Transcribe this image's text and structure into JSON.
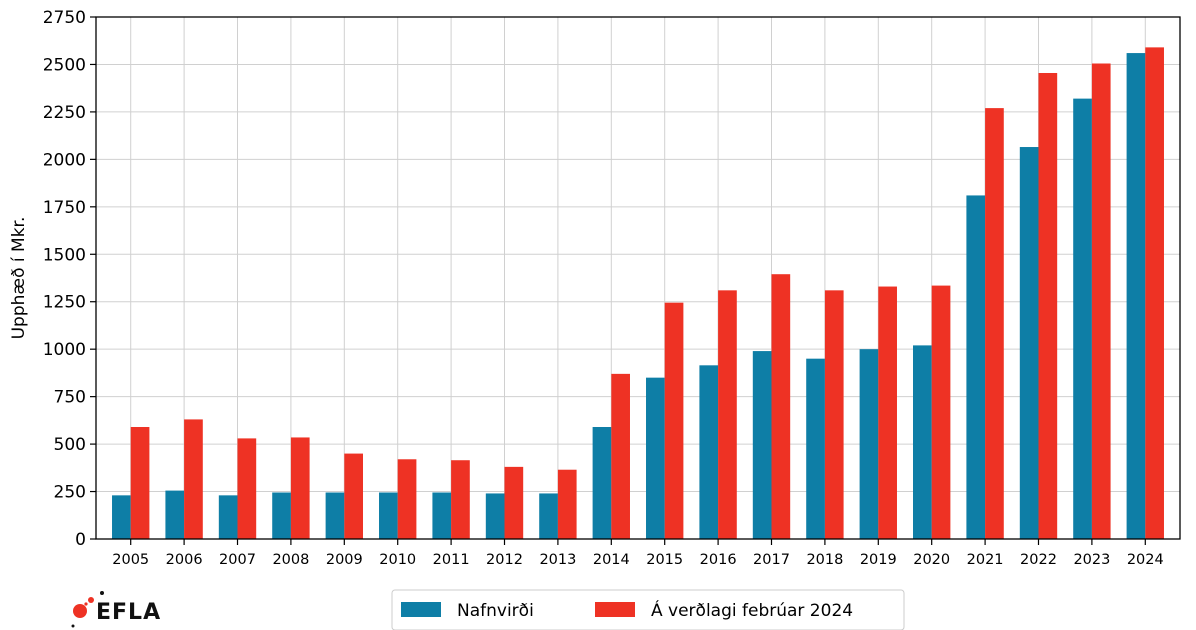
{
  "chart_data": {
    "type": "bar",
    "title": "",
    "xlabel": "",
    "ylabel": "Upphæð í Mkr.",
    "ylim": [
      0,
      2750
    ],
    "yticks": [
      0,
      250,
      500,
      750,
      1000,
      1250,
      1500,
      1750,
      2000,
      2250,
      2500,
      2750
    ],
    "grid": true,
    "legend_position": "bottom-center",
    "categories": [
      "2005",
      "2006",
      "2007",
      "2008",
      "2009",
      "2010",
      "2011",
      "2012",
      "2013",
      "2014",
      "2015",
      "2016",
      "2017",
      "2018",
      "2019",
      "2020",
      "2021",
      "2022",
      "2023",
      "2024"
    ],
    "series": [
      {
        "name": "Nafnvirði",
        "color": "#0e7ea6",
        "values": [
          230,
          255,
          230,
          245,
          245,
          245,
          245,
          240,
          240,
          590,
          850,
          915,
          990,
          950,
          1000,
          1020,
          1810,
          2065,
          2320,
          2560
        ]
      },
      {
        "name": "Á verðlagi febrúar 2024",
        "color": "#ee3224",
        "values": [
          590,
          630,
          530,
          535,
          450,
          420,
          415,
          380,
          365,
          870,
          1245,
          1310,
          1395,
          1310,
          1330,
          1335,
          2270,
          2455,
          2505,
          2590
        ]
      }
    ]
  },
  "logo": {
    "text": "EFLA",
    "icon": "efla-dots-icon",
    "dot_color": "#ee3224"
  },
  "colors": {
    "axis": "#000000",
    "grid": "#d0d0d0"
  }
}
